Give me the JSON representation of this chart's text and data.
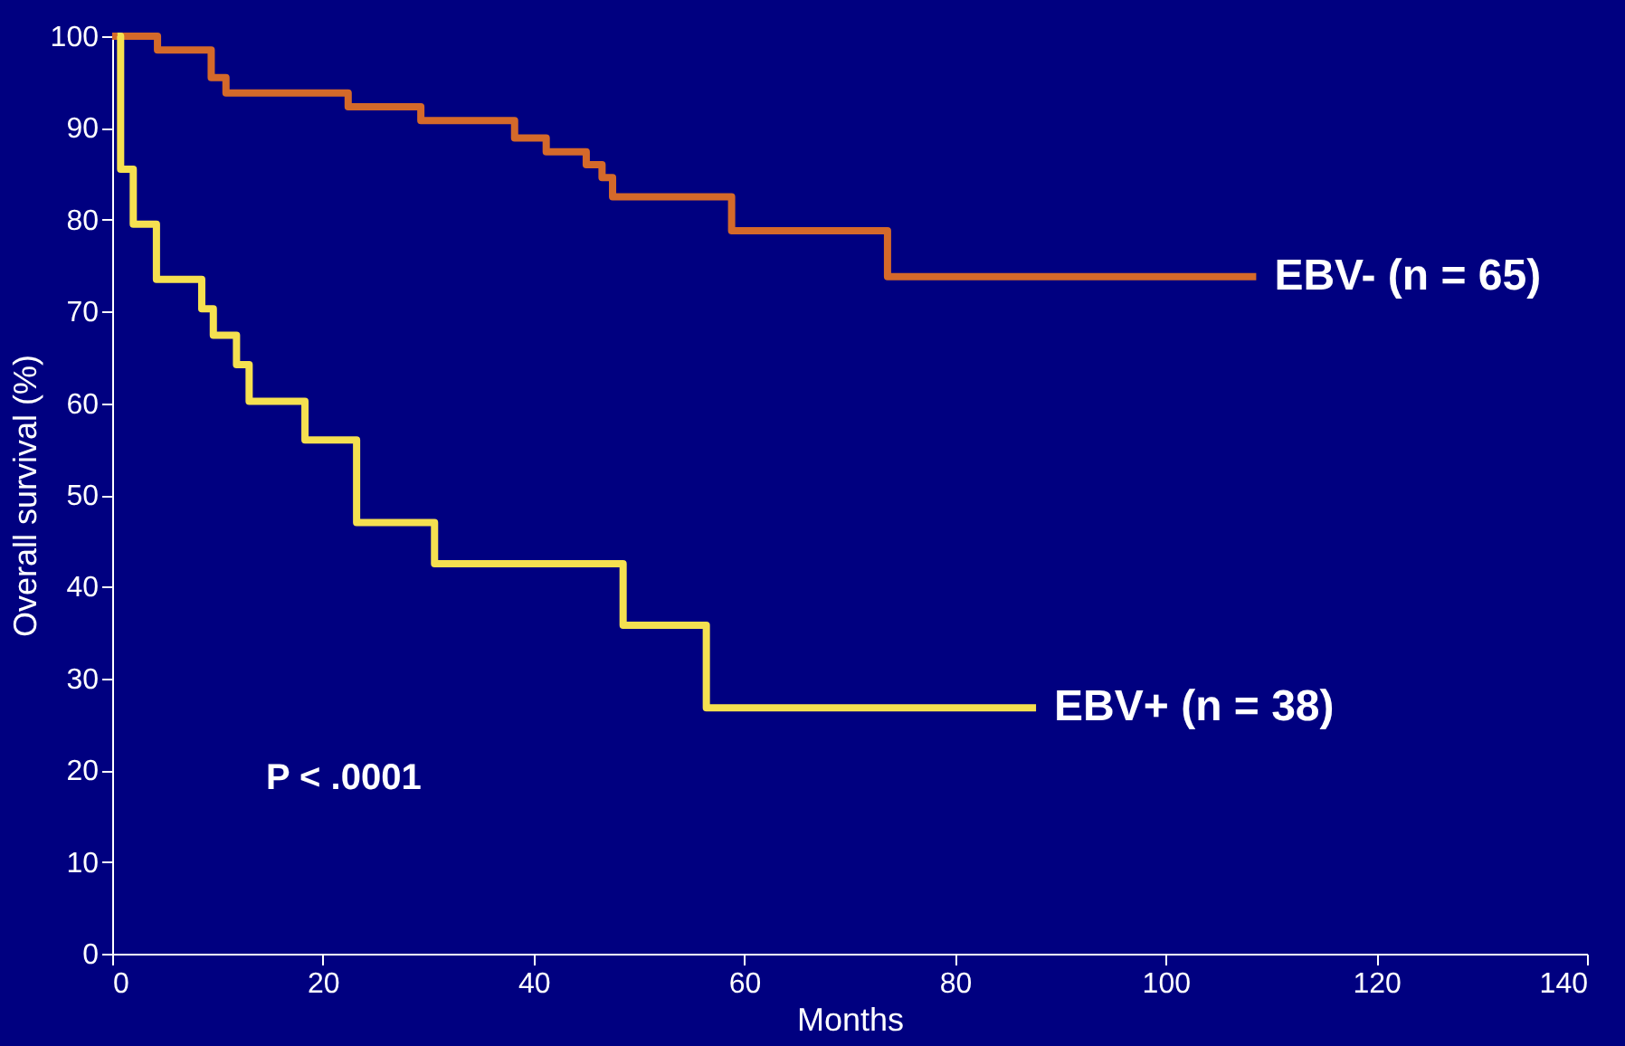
{
  "chart_data": {
    "type": "step",
    "xlabel": "Months",
    "ylabel": "Overall survival (%)",
    "xlim": [
      0,
      140
    ],
    "xticks": [
      0,
      20,
      40,
      60,
      80,
      100,
      120,
      140
    ],
    "ylim": [
      0,
      100
    ],
    "yticks": [
      0,
      10,
      20,
      30,
      40,
      50,
      60,
      70,
      80,
      90,
      100
    ],
    "grid": false,
    "legend": false,
    "marker": "none",
    "line_style": "solid",
    "annotations": [
      "P < .0001"
    ],
    "series": [
      {
        "name": "EBV- (n = 65)",
        "color": "#d4692a",
        "x": [
          0,
          4.3,
          9.4,
          10.8,
          22.4,
          29.3,
          38.2,
          41.2,
          45,
          46.5,
          47.5,
          58.8,
          73.6,
          108.6
        ],
        "values": [
          100,
          98.5,
          95.5,
          93.8,
          92.3,
          90.8,
          88.9,
          87.4,
          86,
          84.6,
          82.5,
          78.8,
          73.8,
          73.8
        ]
      },
      {
        "name": "EBV+ (n = 38)",
        "color": "#f5e050",
        "x": [
          0.5,
          0.8,
          2,
          4.2,
          8.5,
          9.6,
          11.8,
          13,
          18.3,
          23.2,
          30.6,
          48.5,
          56.4,
          87.7
        ],
        "values": [
          100,
          85.5,
          79.5,
          73.5,
          70.3,
          67.4,
          64.2,
          60.2,
          56,
          47,
          42.5,
          35.8,
          26.8,
          26.8
        ]
      }
    ]
  }
}
